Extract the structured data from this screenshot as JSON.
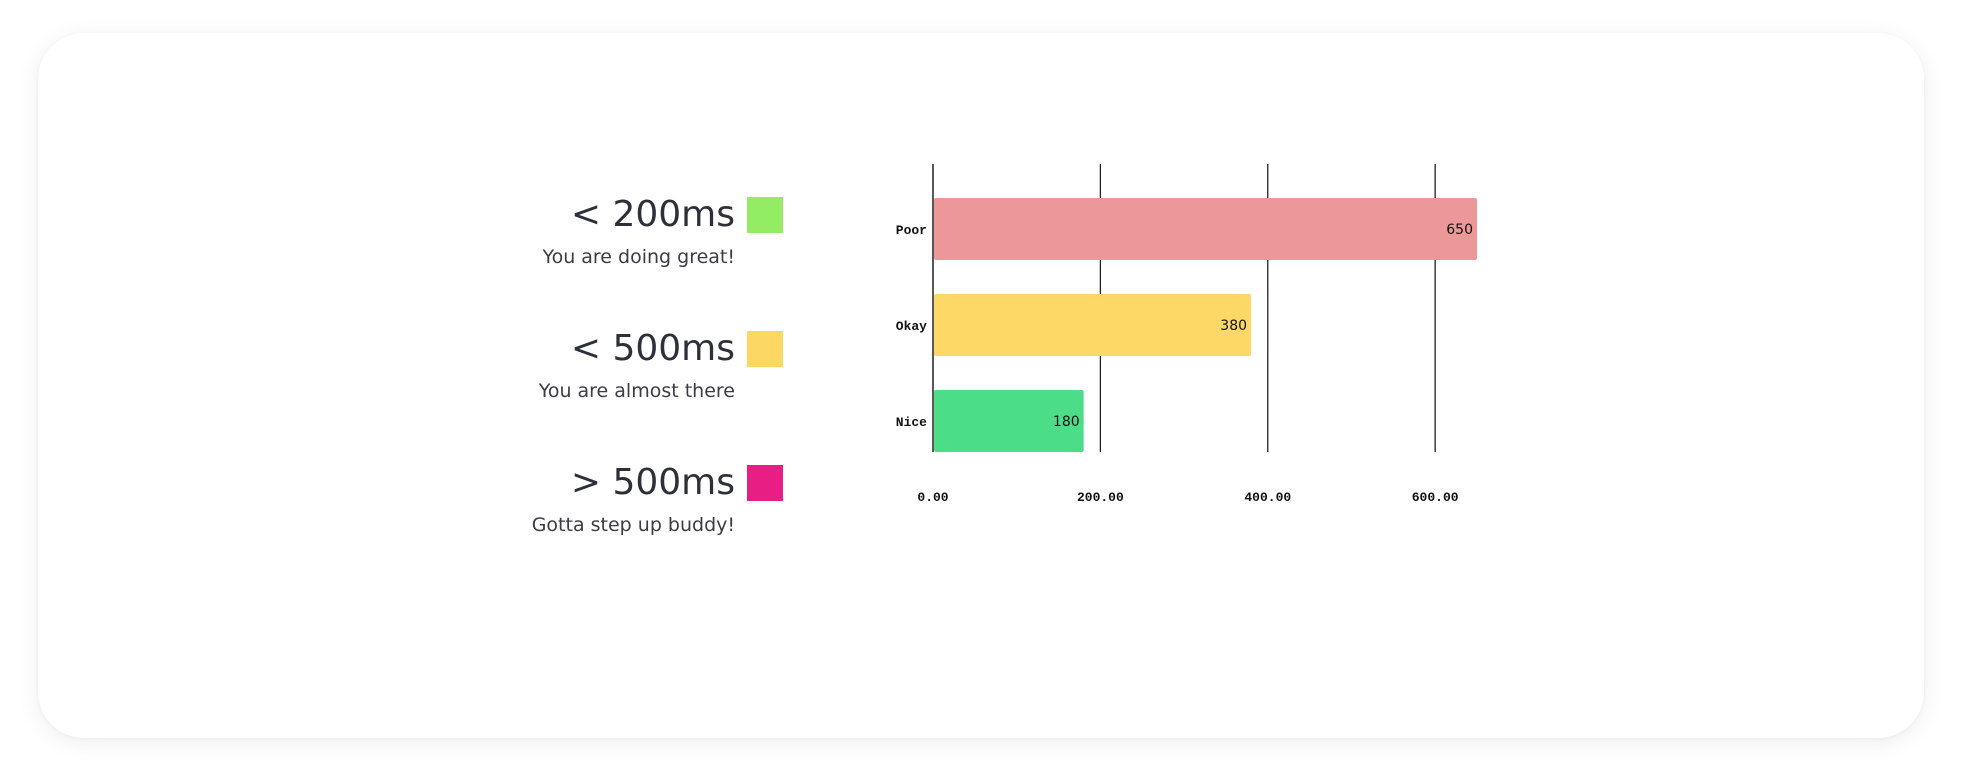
{
  "legend": {
    "items": [
      {
        "title": "< 200ms",
        "description": "You are doing great!",
        "color": "#94ec65"
      },
      {
        "title": "< 500ms",
        "description": "You are almost there",
        "color": "#fdd764"
      },
      {
        "title": "> 500ms",
        "description": "Gotta step up buddy!",
        "color": "#e91e84"
      }
    ]
  },
  "chart_data": {
    "type": "bar",
    "orientation": "horizontal",
    "categories": [
      "Poor",
      "Okay",
      "Nice"
    ],
    "values": [
      650,
      380,
      180
    ],
    "value_labels": [
      "650",
      "380",
      "180"
    ],
    "colors": [
      "#ec9898",
      "#fdd866",
      "#4cdd89"
    ],
    "x_ticks": [
      0,
      200,
      400,
      600
    ],
    "x_tick_labels": [
      "0.00",
      "200.00",
      "400.00",
      "600.00"
    ],
    "xlim": [
      0,
      650
    ],
    "grid": true,
    "title": "",
    "xlabel": "",
    "ylabel": ""
  }
}
